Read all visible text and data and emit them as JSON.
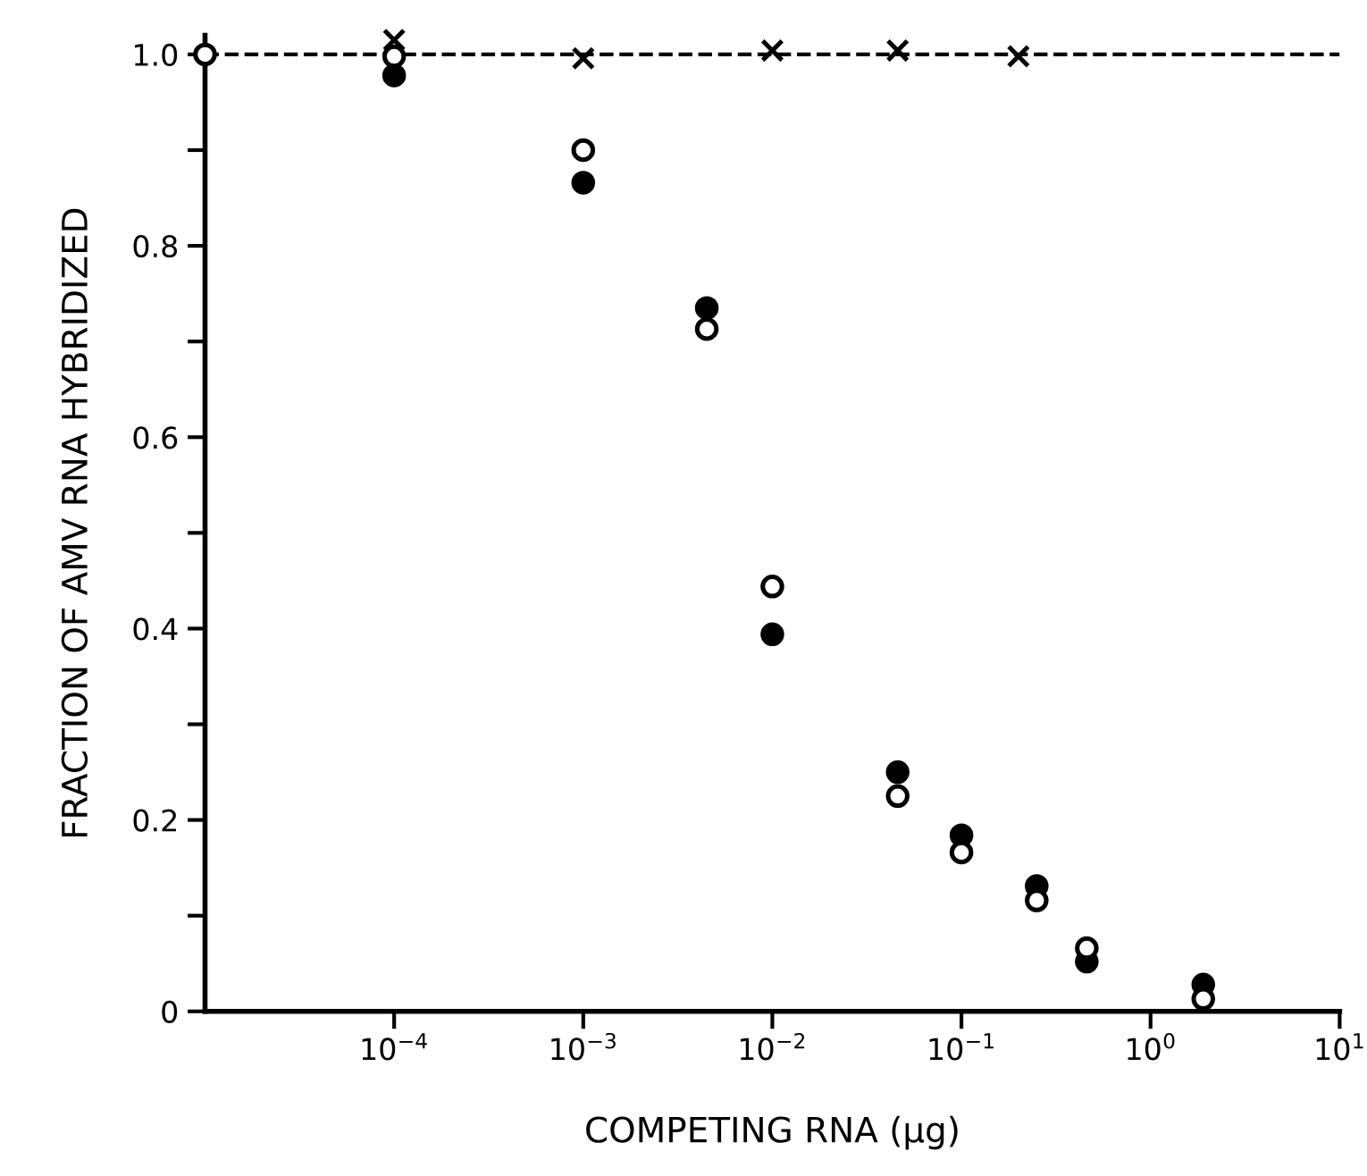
{
  "chart_data": {
    "type": "scatter",
    "xlabel": "COMPETING RNA (μg)",
    "ylabel": "FRACTION OF AMV RNA HYBRIDIZED",
    "log": "x",
    "xlim": [
      1e-05,
      10
    ],
    "xticks": [
      {
        "value": 0.0001,
        "label": "10$^{−4}$"
      },
      {
        "value": 0.001,
        "label": "10$^{−3}$"
      },
      {
        "value": 0.01,
        "label": "10$^{−2}$"
      },
      {
        "value": 0.1,
        "label": "10$^{−1}$"
      },
      {
        "value": 1,
        "label": "10$^{0}$"
      },
      {
        "value": 10,
        "label": "10$^{1}$"
      }
    ],
    "ylim": [
      0,
      1.02
    ],
    "yticks": [
      0,
      {
        "value": 0.1,
        "label": null
      },
      0.2,
      {
        "value": 0.3,
        "label": null
      },
      0.4,
      {
        "value": 0.5,
        "label": null
      },
      0.6,
      {
        "value": 0.7,
        "label": null
      },
      0.8,
      {
        "value": 0.9,
        "label": null
      },
      {
        "value": 1.0,
        "label": "1.0"
      }
    ],
    "grid": false,
    "legend": false,
    "ref_lines": [
      {
        "axis": "y",
        "value": 1.0,
        "color": "#000000",
        "line_style": "dashed"
      }
    ],
    "series": [
      {
        "color": "#000000",
        "marker": "circle",
        "x": [
          0.0001,
          0.001,
          0.0045,
          0.01,
          0.046,
          0.1,
          0.25,
          0.46,
          1.9
        ],
        "values": [
          0.978,
          0.866,
          0.735,
          0.394,
          0.25,
          0.184,
          0.131,
          0.052,
          0.028
        ]
      },
      {
        "color": "#ffffff",
        "marker": "circle",
        "x": [
          1e-05,
          0.0001,
          0.001,
          0.0045,
          0.01,
          0.046,
          0.1,
          0.25,
          0.46,
          1.9
        ],
        "values": [
          1.0,
          0.998,
          0.9,
          0.713,
          0.444,
          0.225,
          0.166,
          0.116,
          0.066,
          0.013
        ]
      },
      {
        "color": "#000000",
        "marker": "cross",
        "x": [
          0.0001,
          0.001,
          0.01,
          0.046,
          0.2
        ],
        "values": [
          1.015,
          0.996,
          1.004,
          1.004,
          0.998
        ]
      }
    ]
  }
}
